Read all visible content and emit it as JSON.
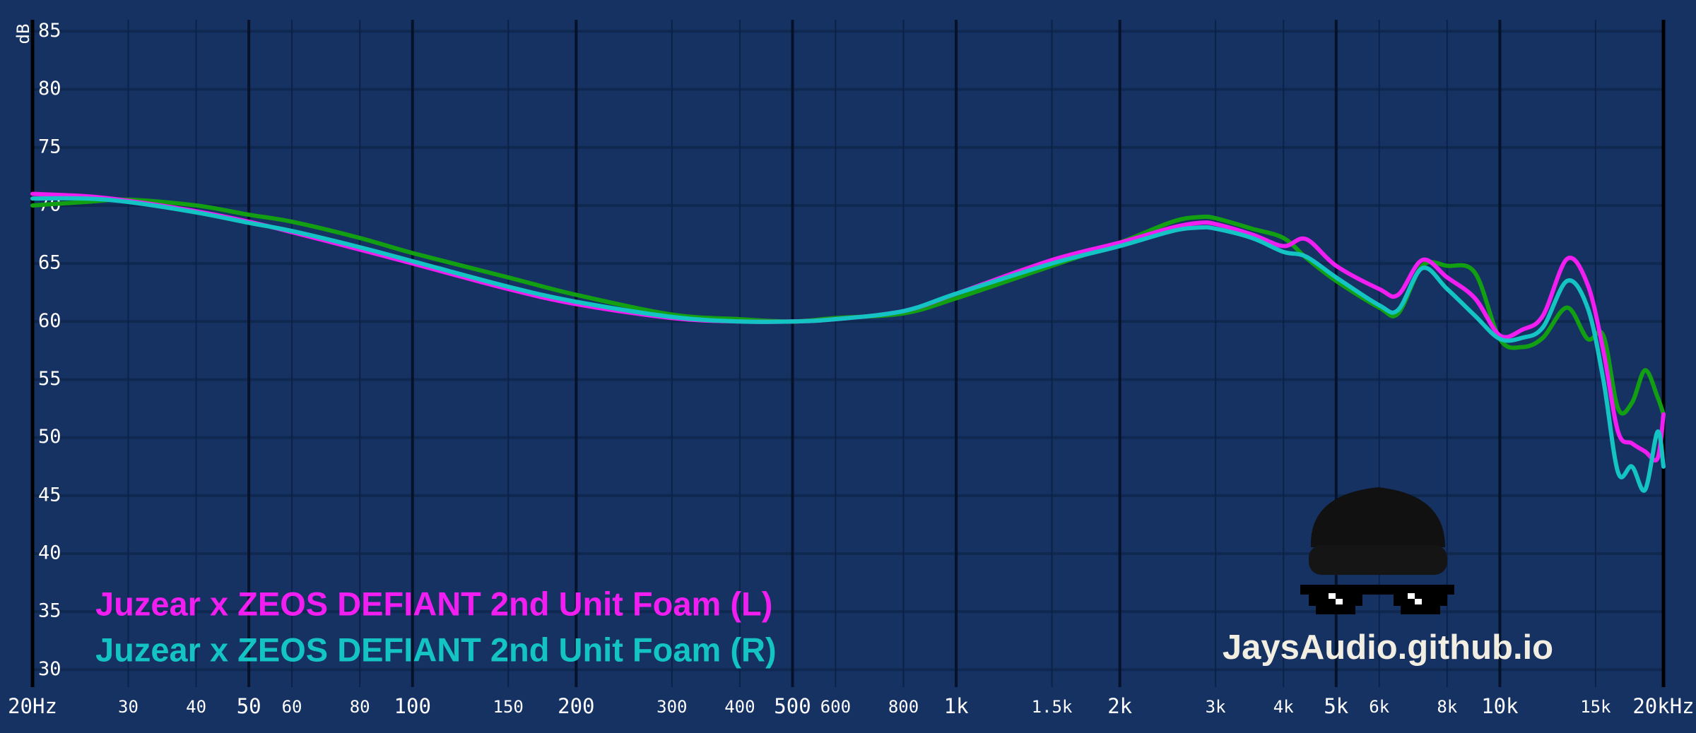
{
  "chart_data": {
    "type": "line",
    "y_label": "dB",
    "annotation": "JaysAudio.github.io",
    "log_x": true,
    "grid": true,
    "xlim": [
      20,
      20000
    ],
    "ylim": [
      28.5,
      86
    ],
    "xticks": [
      {
        "value": 20,
        "label": "20Hz"
      },
      30,
      40,
      50,
      60,
      80,
      100,
      150,
      200,
      300,
      400,
      500,
      600,
      800,
      {
        "value": 1000,
        "label": "1k"
      },
      {
        "value": 1500,
        "label": "1.5k"
      },
      {
        "value": 2000,
        "label": "2k"
      },
      {
        "value": 3000,
        "label": "3k"
      },
      {
        "value": 4000,
        "label": "4k"
      },
      {
        "value": 5000,
        "label": "5k"
      },
      {
        "value": 6000,
        "label": "6k"
      },
      {
        "value": 8000,
        "label": "8k"
      },
      {
        "value": 10000,
        "label": "10k"
      },
      {
        "value": 15000,
        "label": "15k"
      },
      {
        "value": 20000,
        "label": "20kHz"
      }
    ],
    "yticks": [
      30,
      35,
      40,
      45,
      50,
      55,
      60,
      65,
      70,
      75,
      80,
      85
    ],
    "x": [
      20,
      25,
      30,
      40,
      50,
      60,
      80,
      100,
      150,
      200,
      300,
      400,
      500,
      600,
      800,
      1000,
      1500,
      2000,
      2500,
      2800,
      3000,
      3500,
      4000,
      4400,
      5000,
      6000,
      6500,
      7200,
      8000,
      9000,
      10000,
      11000,
      12000,
      13300,
      14500,
      15500,
      16500,
      17500,
      18500,
      19500,
      20000
    ],
    "series": [
      {
        "name": "Juzear x ZEOS DEFIANT 2nd Unit Foam (L)",
        "color": "#f01ef0",
        "values": [
          71,
          70.8,
          70.4,
          69.5,
          68.6,
          67.7,
          66.2,
          65,
          62.8,
          61.5,
          60.3,
          60,
          60,
          60.2,
          60.9,
          62.4,
          65.3,
          66.8,
          68.1,
          68.5,
          68.4,
          67.5,
          66.5,
          67.1,
          64.8,
          62.8,
          62.3,
          65.3,
          63.8,
          62,
          58.8,
          59.3,
          60.5,
          65.4,
          63.2,
          57.5,
          50.5,
          49.5,
          48.8,
          48.2,
          52
        ]
      },
      {
        "name": "Juzear x ZEOS DEFIANT 2nd Unit Foam (R)",
        "color": "#14c4c4",
        "values": [
          70.6,
          70.6,
          70.3,
          69.4,
          68.5,
          67.8,
          66.4,
          65.2,
          63,
          61.7,
          60.4,
          60,
          60,
          60.2,
          60.9,
          62.4,
          65,
          66.5,
          67.8,
          68.1,
          68,
          67.2,
          66,
          65.6,
          63.8,
          61.4,
          61,
          64.6,
          62.8,
          60.5,
          58.5,
          58.6,
          59.5,
          63.5,
          61.2,
          55,
          47,
          47.5,
          45.5,
          50.5,
          47.5
        ]
      },
      {
        "color": "#12a012",
        "values": [
          70,
          70.3,
          70.5,
          70,
          69.2,
          68.6,
          67.2,
          65.9,
          63.8,
          62.3,
          60.6,
          60.2,
          60,
          60.3,
          60.7,
          62,
          64.8,
          66.8,
          68.6,
          69,
          68.9,
          68,
          67.2,
          65.5,
          63.5,
          61.2,
          60.7,
          64.8,
          64.8,
          64.2,
          58.5,
          57.8,
          58.6,
          61.2,
          58.5,
          58.8,
          52.5,
          53,
          55.8,
          53.5,
          52
        ]
      }
    ]
  }
}
